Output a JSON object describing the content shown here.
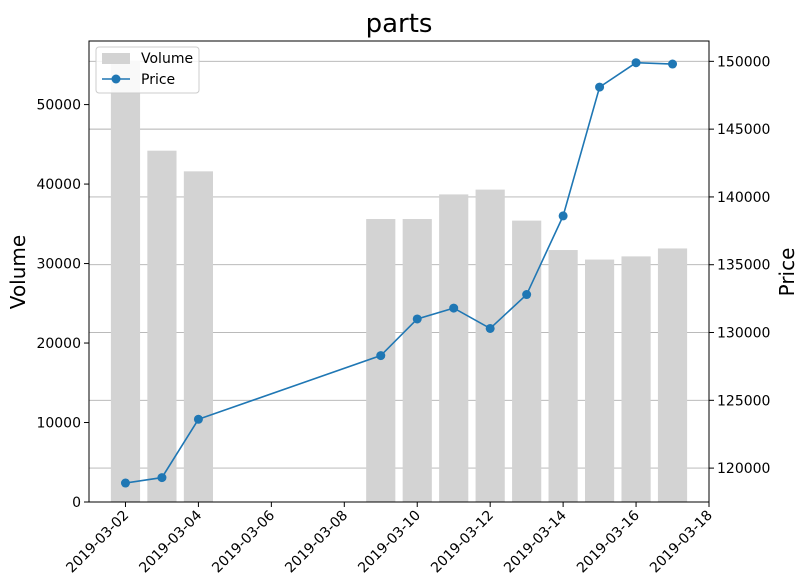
{
  "chart_data": {
    "type": "bar+line",
    "title": "parts",
    "dates": [
      "2019-03-02",
      "2019-03-03",
      "2019-03-04",
      "2019-03-09",
      "2019-03-10",
      "2019-03-11",
      "2019-03-12",
      "2019-03-13",
      "2019-03-14",
      "2019-03-15",
      "2019-03-16",
      "2019-03-17"
    ],
    "series": [
      {
        "name": "Volume",
        "type": "bar",
        "axis": "left",
        "color": "#d3d3d3",
        "values": [
          55500,
          44200,
          41600,
          35600,
          35600,
          38700,
          39300,
          35400,
          31700,
          30500,
          30900,
          31900
        ]
      },
      {
        "name": "Price",
        "type": "line",
        "axis": "right",
        "color": "#1f77b4",
        "marker": "circle",
        "values": [
          118900,
          119300,
          123600,
          128300,
          131000,
          131800,
          130300,
          132800,
          138600,
          148100,
          149900,
          149800
        ]
      }
    ],
    "ylabel_left": "Volume",
    "ylabel_right": "Price",
    "ylim_left": [
      0,
      58000
    ],
    "ylim_right": [
      117500,
      151500
    ],
    "left_ticks": [
      0,
      10000,
      20000,
      30000,
      40000,
      50000
    ],
    "right_ticks": [
      120000,
      125000,
      130000,
      135000,
      140000,
      145000,
      150000
    ],
    "x_ticks": [
      "2019-03-02",
      "2019-03-04",
      "2019-03-06",
      "2019-03-08",
      "2019-03-10",
      "2019-03-12",
      "2019-03-14",
      "2019-03-16",
      "2019-03-18"
    ],
    "xlim": [
      "2019-03-01",
      "2019-03-18"
    ],
    "grid": "horizontal, price axis",
    "legend_position": "upper-left"
  }
}
